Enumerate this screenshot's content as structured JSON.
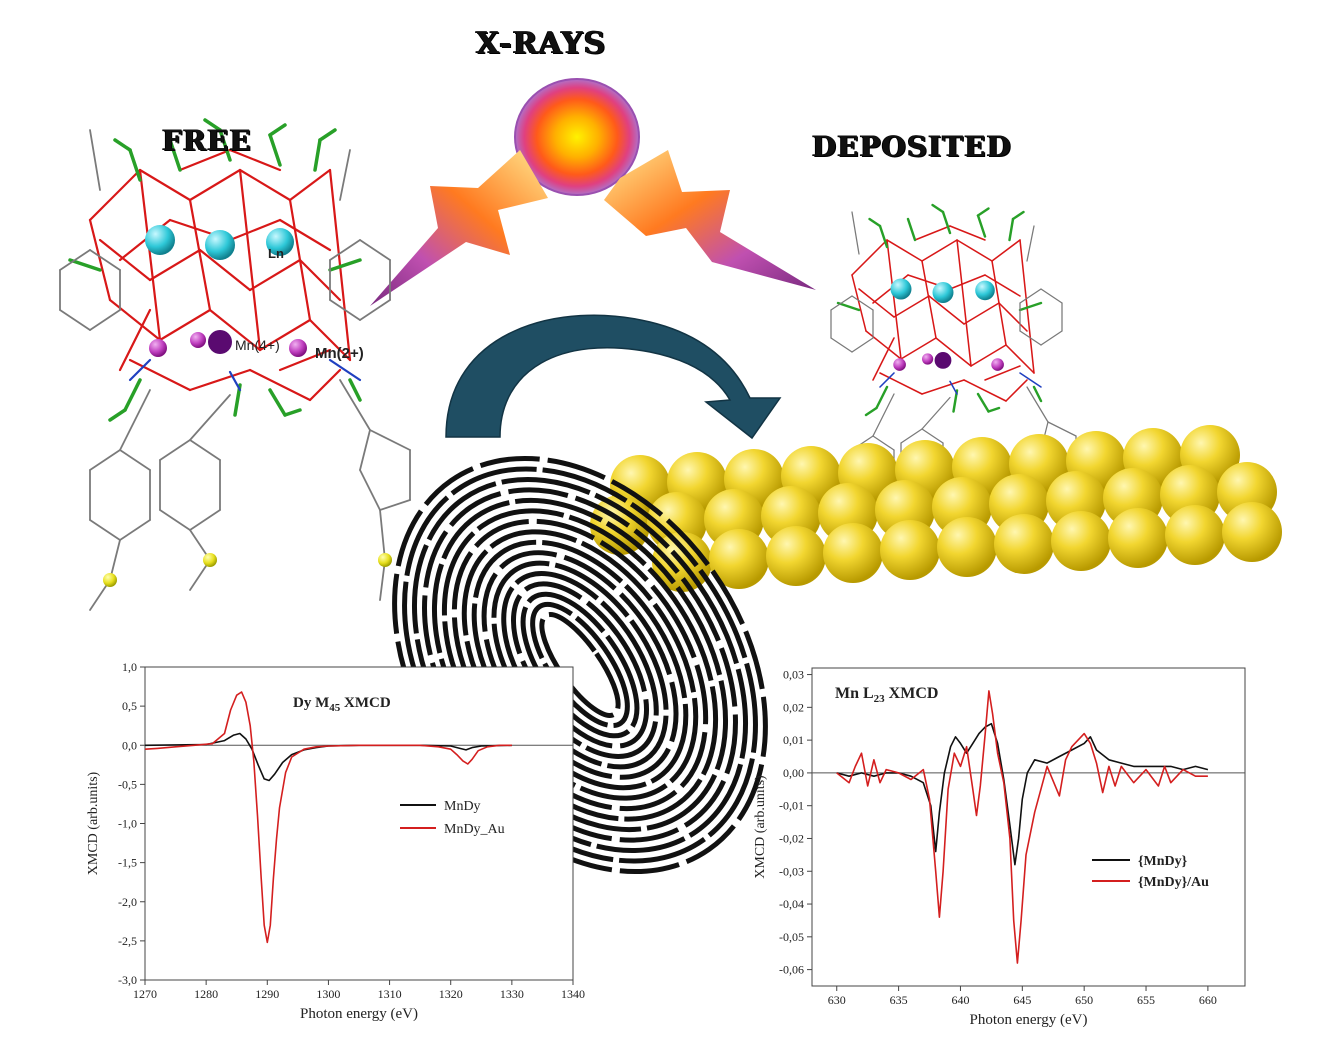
{
  "labels": {
    "xrays": "X-RAYS",
    "free": "FREE",
    "deposited": "DEPOSITED"
  },
  "molecule_labels": {
    "ln": "Ln",
    "mn4": "Mn(4+)",
    "mn2": "Mn(2+)"
  },
  "colors": {
    "gold": "#e8d020",
    "ln_atom": "#2ec8d8",
    "mn_atom": "#c040c0",
    "mn_center": "#5a0a70",
    "arrow": "#1f4e63",
    "bond_red": "#d81818",
    "bond_green": "#28a028",
    "bond_grey": "#7a7a7a",
    "series_black": "#111111",
    "series_red": "#d41f1f"
  },
  "chart_data": [
    {
      "type": "line",
      "title": "Dy M45 XMCD",
      "title_main": "Dy M",
      "title_sub": "45",
      "title_tail": " XMCD",
      "xlabel": "Photon energy (eV)",
      "ylabel": "XMCD (arb.units)",
      "xlim": [
        1270,
        1340
      ],
      "ylim": [
        -3.0,
        1.0
      ],
      "xticks": [
        "1270",
        "1280",
        "1290",
        "1300",
        "1310",
        "1320",
        "1330",
        "1340"
      ],
      "yticks": [
        "1,0",
        "0,5",
        "0,0",
        "-0,5",
        "-1,0",
        "-1,5",
        "-2,0",
        "-2,5",
        "-3,0"
      ],
      "legend": "right",
      "series": [
        {
          "name": "MnDy",
          "color": "#111111",
          "x": [
            1270,
            1280,
            1283,
            1284.5,
            1285.5,
            1286.5,
            1287.5,
            1288.5,
            1289.5,
            1290.3,
            1291.2,
            1292.5,
            1294,
            1296,
            1298,
            1300,
            1305,
            1310,
            1315,
            1320,
            1321.5,
            1322.5,
            1323.5,
            1325,
            1330
          ],
          "y": [
            0,
            0.01,
            0.06,
            0.13,
            0.15,
            0.08,
            -0.05,
            -0.25,
            -0.43,
            -0.45,
            -0.37,
            -0.22,
            -0.12,
            -0.06,
            -0.03,
            -0.01,
            0,
            0,
            0,
            -0.01,
            -0.04,
            -0.06,
            -0.03,
            -0.01,
            0
          ]
        },
        {
          "name": "MnDy_Au",
          "color": "#d41f1f",
          "x": [
            1270,
            1272,
            1275,
            1278,
            1281,
            1283,
            1284,
            1285,
            1285.8,
            1286.5,
            1287.2,
            1287.8,
            1288.4,
            1289,
            1289.5,
            1290,
            1290.5,
            1291,
            1291.5,
            1292,
            1293,
            1294,
            1296,
            1298,
            1300,
            1305,
            1310,
            1315,
            1318,
            1320,
            1321,
            1322,
            1322.8,
            1323.5,
            1324.5,
            1326,
            1328,
            1330
          ],
          "y": [
            -0.05,
            -0.04,
            -0.02,
            0,
            0.02,
            0.15,
            0.45,
            0.64,
            0.68,
            0.55,
            0.25,
            -0.2,
            -0.9,
            -1.7,
            -2.3,
            -2.52,
            -2.3,
            -1.7,
            -1.2,
            -0.8,
            -0.35,
            -0.15,
            -0.05,
            -0.02,
            -0.01,
            0,
            0,
            0,
            -0.02,
            -0.05,
            -0.12,
            -0.2,
            -0.24,
            -0.18,
            -0.07,
            -0.02,
            0,
            0
          ]
        }
      ]
    },
    {
      "type": "line",
      "title": "Mn L23 XMCD",
      "title_main": "Mn L",
      "title_sub": "23",
      "title_tail": " XMCD",
      "xlabel": "Photon energy (eV)",
      "ylabel": "XMCD (arb.units)",
      "xlim": [
        628,
        663
      ],
      "ylim": [
        -0.065,
        0.032
      ],
      "xticks": [
        "630",
        "635",
        "640",
        "645",
        "650",
        "655",
        "660"
      ],
      "yticks": [
        "0,03",
        "0,02",
        "0,01",
        "0,00",
        "-0,01",
        "-0,02",
        "-0,03",
        "-0,04",
        "-0,05",
        "-0,06"
      ],
      "legend": "lower-right",
      "series": [
        {
          "name": "{MnDy}",
          "color": "#111111",
          "x": [
            630,
            631,
            632,
            633,
            634,
            635,
            636,
            637,
            637.6,
            638,
            638.3,
            638.7,
            639.2,
            639.6,
            640,
            640.5,
            641,
            641.5,
            642,
            642.5,
            643,
            643.5,
            644,
            644.4,
            644.7,
            645,
            645.4,
            646,
            647,
            648,
            649,
            650,
            650.5,
            651,
            652,
            653,
            654,
            655,
            656,
            657,
            658,
            659,
            660
          ],
          "y": [
            0,
            -0.001,
            0,
            -0.001,
            0,
            0,
            -0.001,
            -0.003,
            -0.01,
            -0.024,
            -0.012,
            0,
            0.008,
            0.011,
            0.009,
            0.006,
            0.009,
            0.012,
            0.014,
            0.015,
            0.009,
            -0.002,
            -0.016,
            -0.028,
            -0.02,
            -0.008,
            0,
            0.004,
            0.003,
            0.005,
            0.007,
            0.009,
            0.011,
            0.007,
            0.004,
            0.003,
            0.002,
            0.002,
            0.002,
            0.002,
            0.001,
            0.002,
            0.001
          ]
        },
        {
          "name": "{MnDy}/Au",
          "color": "#d41f1f",
          "x": [
            630,
            631,
            631.5,
            632,
            632.5,
            633,
            633.5,
            634,
            635,
            636,
            637,
            637.5,
            638,
            638.3,
            638.6,
            639,
            639.5,
            640,
            640.5,
            641,
            641.3,
            641.6,
            642,
            642.3,
            642.6,
            643,
            643.5,
            644,
            644.3,
            644.6,
            644.9,
            645.3,
            646,
            647,
            648,
            648.5,
            649,
            650,
            650.5,
            651,
            651.5,
            652,
            652.5,
            653,
            654,
            655,
            656,
            656.5,
            657,
            658,
            659,
            660
          ],
          "y": [
            0,
            -0.003,
            0.002,
            0.006,
            -0.004,
            0.004,
            -0.003,
            0.001,
            0,
            -0.002,
            0.001,
            -0.008,
            -0.03,
            -0.044,
            -0.03,
            -0.005,
            0.006,
            0.002,
            0.008,
            -0.005,
            -0.013,
            -0.004,
            0.012,
            0.025,
            0.018,
            0.006,
            -0.003,
            -0.02,
            -0.045,
            -0.058,
            -0.045,
            -0.025,
            -0.012,
            0.002,
            -0.007,
            0.004,
            0.008,
            0.012,
            0.009,
            0.003,
            -0.006,
            0.002,
            -0.004,
            0.002,
            -0.003,
            0.001,
            -0.004,
            0.002,
            -0.003,
            0.001,
            -0.001,
            -0.001
          ]
        }
      ]
    }
  ]
}
